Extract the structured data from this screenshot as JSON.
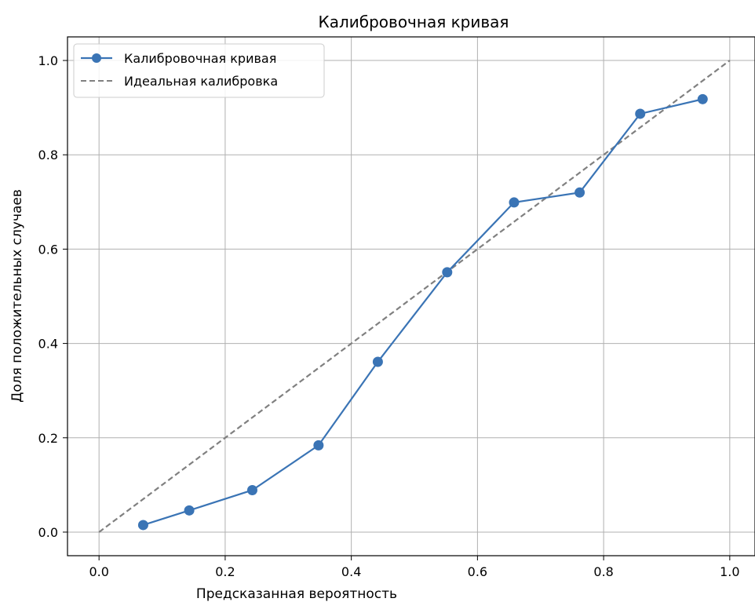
{
  "chart_data": {
    "type": "line",
    "title": "Калибровочная кривая",
    "xlabel": "Предсказанная вероятность",
    "ylabel": "Доля положительных случаев",
    "xlim": [
      -0.05,
      1.04
    ],
    "ylim": [
      -0.05,
      1.05
    ],
    "xticks": [
      "0.0",
      "0.2",
      "0.4",
      "0.6",
      "0.8",
      "1.0"
    ],
    "yticks": [
      "0.0",
      "0.2",
      "0.4",
      "0.6",
      "0.8",
      "1.0"
    ],
    "grid": true,
    "legend_position": "top-left",
    "series": [
      {
        "name": "Калибровочная кривая",
        "style": "solid-line-with-circle-markers",
        "color": "#3a74b5",
        "x": [
          0.07,
          0.143,
          0.243,
          0.348,
          0.442,
          0.552,
          0.658,
          0.762,
          0.858,
          0.957
        ],
        "y": [
          0.015,
          0.046,
          0.089,
          0.184,
          0.361,
          0.551,
          0.699,
          0.72,
          0.887,
          0.918
        ]
      },
      {
        "name": "Идеальная калибровка",
        "style": "dashed-line",
        "color": "#808080",
        "x": [
          0.0,
          1.0
        ],
        "y": [
          0.0,
          1.0
        ]
      }
    ]
  }
}
